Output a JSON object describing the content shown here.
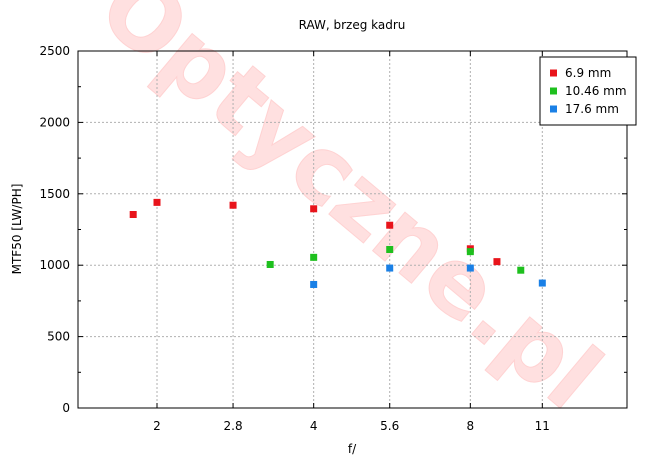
{
  "chart_data": {
    "type": "scatter",
    "title": "RAW, brzeg kadru",
    "xlabel": "f/",
    "ylabel": "MTF50 [LW/PH]",
    "x_scale": "log2",
    "x_ticks": [
      2,
      2.8,
      4,
      5.6,
      8,
      11
    ],
    "x_tick_labels": [
      "2",
      "2.8",
      "4",
      "5.6",
      "8",
      "11"
    ],
    "xlim": [
      1.41,
      16
    ],
    "ylim": [
      0,
      2500
    ],
    "y_ticks": [
      0,
      500,
      1000,
      1500,
      2000,
      2500
    ],
    "y_tick_labels": [
      "0",
      "500",
      "1000",
      "1500",
      "2000",
      "2500"
    ],
    "grid": true,
    "legend_position": "top-right",
    "series": [
      {
        "name": "6.9 mm",
        "color": "#e8141b",
        "points": [
          {
            "x": 1.8,
            "y": 1355
          },
          {
            "x": 2.0,
            "y": 1440
          },
          {
            "x": 2.8,
            "y": 1420
          },
          {
            "x": 4.0,
            "y": 1395
          },
          {
            "x": 5.6,
            "y": 1280
          },
          {
            "x": 8.0,
            "y": 1115
          },
          {
            "x": 9.0,
            "y": 1025
          }
        ]
      },
      {
        "name": "10.46 mm",
        "color": "#1ec01e",
        "points": [
          {
            "x": 3.3,
            "y": 1005
          },
          {
            "x": 4.0,
            "y": 1055
          },
          {
            "x": 5.6,
            "y": 1110
          },
          {
            "x": 8.0,
            "y": 1095
          },
          {
            "x": 10.0,
            "y": 965
          }
        ]
      },
      {
        "name": "17.6 mm",
        "color": "#1a80e6",
        "points": [
          {
            "x": 4.0,
            "y": 865
          },
          {
            "x": 5.6,
            "y": 980
          },
          {
            "x": 8.0,
            "y": 980
          },
          {
            "x": 11.0,
            "y": 875
          }
        ]
      }
    ],
    "watermark": "Optyczne.pl"
  }
}
